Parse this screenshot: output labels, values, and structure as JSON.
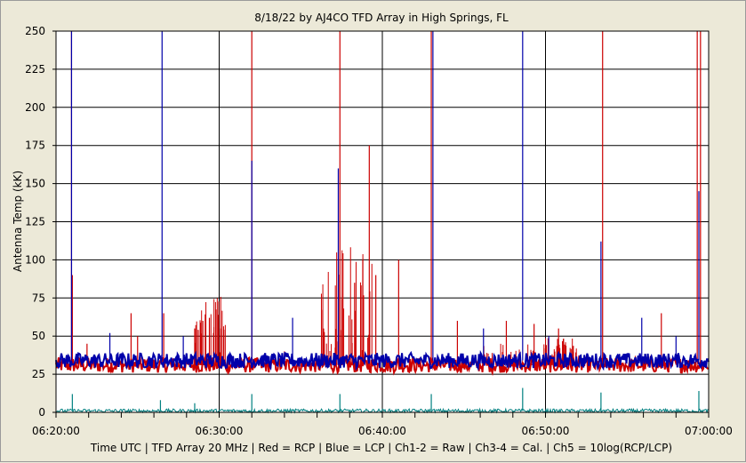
{
  "chart_data": {
    "type": "line",
    "title": "8/18/22  by  AJ4CO TFD Array  in  High Springs, FL",
    "xlabel": "Time UTC  |  TFD Array 20 MHz  |  Red = RCP  |  Blue = LCP  |  Ch1-2 = Raw  |  Ch3-4 = Cal.  |  Ch5 = 10log(RCP/LCP)",
    "ylabel": "Antenna Temp (kK)",
    "ylim": [
      0,
      250
    ],
    "yticks": [
      "0",
      "25",
      "50",
      "75",
      "100",
      "125",
      "150",
      "175",
      "200",
      "225",
      "250"
    ],
    "xlim_minutes": [
      0,
      40
    ],
    "xticks": [
      "06:20:00",
      "06:30:00",
      "06:40:00",
      "06:50:00",
      "07:00:00"
    ],
    "grid": true,
    "colors": {
      "rcp": "#cc0000",
      "lcp": "#0000aa",
      "ratio": "#008080",
      "plot_bg": "#ffffff",
      "grid": "#000000"
    },
    "series": [
      {
        "name": "Red = RCP",
        "baseline": 31,
        "spikes": [
          {
            "t": 0.95,
            "v": 250
          },
          {
            "t": 1.0,
            "v": 90
          },
          {
            "t": 1.9,
            "v": 45
          },
          {
            "t": 4.6,
            "v": 65
          },
          {
            "t": 5.0,
            "v": 50
          },
          {
            "t": 6.6,
            "v": 65
          },
          {
            "t": 8.5,
            "v": 55
          },
          {
            "t": 9.0,
            "v": 60
          },
          {
            "t": 9.4,
            "v": 62
          },
          {
            "t": 10.1,
            "v": 55
          },
          {
            "t": 12.0,
            "v": 250
          },
          {
            "t": 14.0,
            "v": 40
          },
          {
            "t": 16.4,
            "v": 55
          },
          {
            "t": 17.4,
            "v": 250
          },
          {
            "t": 18.3,
            "v": 85
          },
          {
            "t": 18.8,
            "v": 100
          },
          {
            "t": 19.2,
            "v": 175
          },
          {
            "t": 19.6,
            "v": 90
          },
          {
            "t": 21.0,
            "v": 100
          },
          {
            "t": 23.0,
            "v": 250
          },
          {
            "t": 24.6,
            "v": 60
          },
          {
            "t": 27.6,
            "v": 60
          },
          {
            "t": 29.3,
            "v": 58
          },
          {
            "t": 30.8,
            "v": 55
          },
          {
            "t": 33.5,
            "v": 250
          },
          {
            "t": 37.1,
            "v": 65
          },
          {
            "t": 39.3,
            "v": 250
          },
          {
            "t": 39.5,
            "v": 250
          }
        ],
        "clusters": [
          {
            "from": 8.5,
            "to": 10.5,
            "max": 80
          },
          {
            "from": 16.2,
            "to": 19.5,
            "max": 110
          },
          {
            "from": 26.0,
            "to": 31.0,
            "max": 45
          },
          {
            "from": 30.0,
            "to": 32.0,
            "max": 50
          }
        ]
      },
      {
        "name": "Blue = LCP",
        "baseline": 34,
        "spikes": [
          {
            "t": 0.95,
            "v": 250
          },
          {
            "t": 3.3,
            "v": 52
          },
          {
            "t": 6.5,
            "v": 250
          },
          {
            "t": 7.8,
            "v": 50
          },
          {
            "t": 12.0,
            "v": 165
          },
          {
            "t": 14.5,
            "v": 62
          },
          {
            "t": 17.3,
            "v": 160
          },
          {
            "t": 23.1,
            "v": 250
          },
          {
            "t": 26.2,
            "v": 55
          },
          {
            "t": 28.6,
            "v": 250
          },
          {
            "t": 30.2,
            "v": 50
          },
          {
            "t": 33.4,
            "v": 112
          },
          {
            "t": 35.9,
            "v": 62
          },
          {
            "t": 38.0,
            "v": 50
          },
          {
            "t": 39.4,
            "v": 145
          }
        ]
      },
      {
        "name": "Ch5 = 10log(RCP/LCP)",
        "baseline": 1,
        "spikes": [
          {
            "t": 1.0,
            "v": 12
          },
          {
            "t": 6.4,
            "v": 8
          },
          {
            "t": 8.5,
            "v": 6
          },
          {
            "t": 12.0,
            "v": 12
          },
          {
            "t": 17.4,
            "v": 12
          },
          {
            "t": 23.0,
            "v": 12
          },
          {
            "t": 28.6,
            "v": 16
          },
          {
            "t": 33.4,
            "v": 13
          },
          {
            "t": 39.4,
            "v": 14
          }
        ]
      }
    ]
  }
}
